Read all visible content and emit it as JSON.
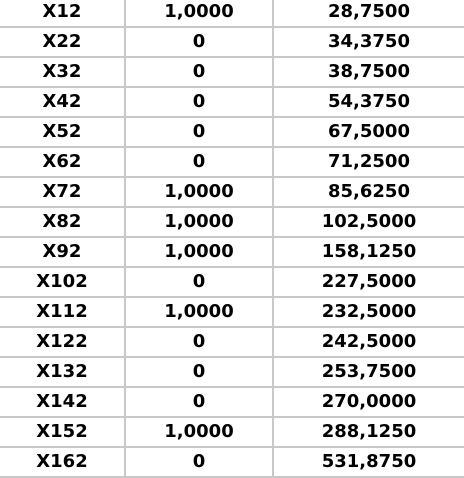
{
  "table": {
    "rows": [
      {
        "var": "X12",
        "val": "1,0000",
        "num": "28,7500"
      },
      {
        "var": "X22",
        "val": "0",
        "num": "34,3750"
      },
      {
        "var": "X32",
        "val": "0",
        "num": "38,7500"
      },
      {
        "var": "X42",
        "val": "0",
        "num": "54,3750"
      },
      {
        "var": "X52",
        "val": "0",
        "num": "67,5000"
      },
      {
        "var": "X62",
        "val": "0",
        "num": "71,2500"
      },
      {
        "var": "X72",
        "val": "1,0000",
        "num": "85,6250"
      },
      {
        "var": "X82",
        "val": "1,0000",
        "num": "102,5000"
      },
      {
        "var": "X92",
        "val": "1,0000",
        "num": "158,1250"
      },
      {
        "var": "X102",
        "val": "0",
        "num": "227,5000"
      },
      {
        "var": "X112",
        "val": "1,0000",
        "num": "232,5000"
      },
      {
        "var": "X122",
        "val": "0",
        "num": "242,5000"
      },
      {
        "var": "X132",
        "val": "0",
        "num": "253,7500"
      },
      {
        "var": "X142",
        "val": "0",
        "num": "270,0000"
      },
      {
        "var": "X152",
        "val": "1,0000",
        "num": "288,1250"
      },
      {
        "var": "X162",
        "val": "0",
        "num": "531,8750"
      }
    ]
  }
}
